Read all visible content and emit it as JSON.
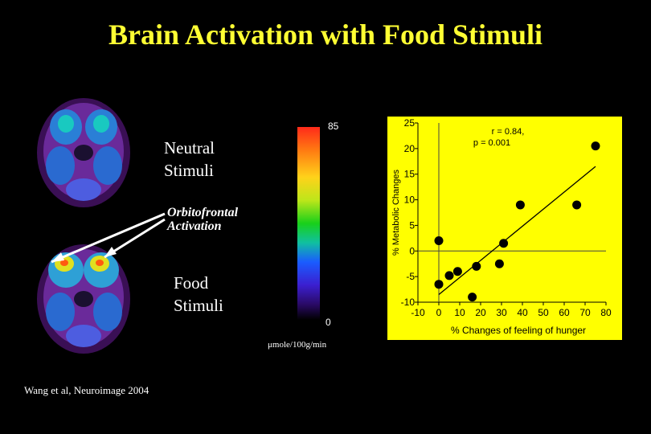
{
  "title": "Brain Activation with Food Stimuli",
  "labels": {
    "neutral_line1": "Neutral",
    "neutral_line2": "Stimuli",
    "food_line1": "Food",
    "food_line2": "Stimuli",
    "orbito_line1": "Orbitofrontal",
    "orbito_line2": "Activation"
  },
  "colorbar": {
    "max": "85",
    "min": "0",
    "unit": "μmole/100g/min"
  },
  "citation": "Wang et al, Neuroimage 2004",
  "colors": {
    "title": "#ffff33",
    "chart_bg": "#ffff00",
    "background": "#000000"
  },
  "chart_data": {
    "type": "scatter",
    "xlabel": "% Changes of feeling of  hunger",
    "ylabel": "% Metabolic Changes",
    "xlim": [
      -10,
      80
    ],
    "ylim": [
      -10,
      25
    ],
    "xticks": [
      -10,
      0,
      10,
      20,
      30,
      40,
      50,
      60,
      70,
      80
    ],
    "yticks": [
      -10,
      -5,
      0,
      5,
      10,
      15,
      20,
      25
    ],
    "annotation_line1": "r = 0.84,",
    "annotation_line2": "p = 0.001",
    "points": [
      {
        "x": 0,
        "y": 2
      },
      {
        "x": 0,
        "y": -6.5
      },
      {
        "x": 5,
        "y": -4.8
      },
      {
        "x": 9,
        "y": -4
      },
      {
        "x": 18,
        "y": -3
      },
      {
        "x": 16,
        "y": -9
      },
      {
        "x": 29,
        "y": -2.5
      },
      {
        "x": 31,
        "y": 1.5
      },
      {
        "x": 39,
        "y": 9
      },
      {
        "x": 66,
        "y": 9
      },
      {
        "x": 75,
        "y": 20.5
      }
    ],
    "fit_line": {
      "x": [
        0,
        75
      ],
      "y": [
        -8.5,
        16.5
      ]
    },
    "zero_lines": true
  }
}
